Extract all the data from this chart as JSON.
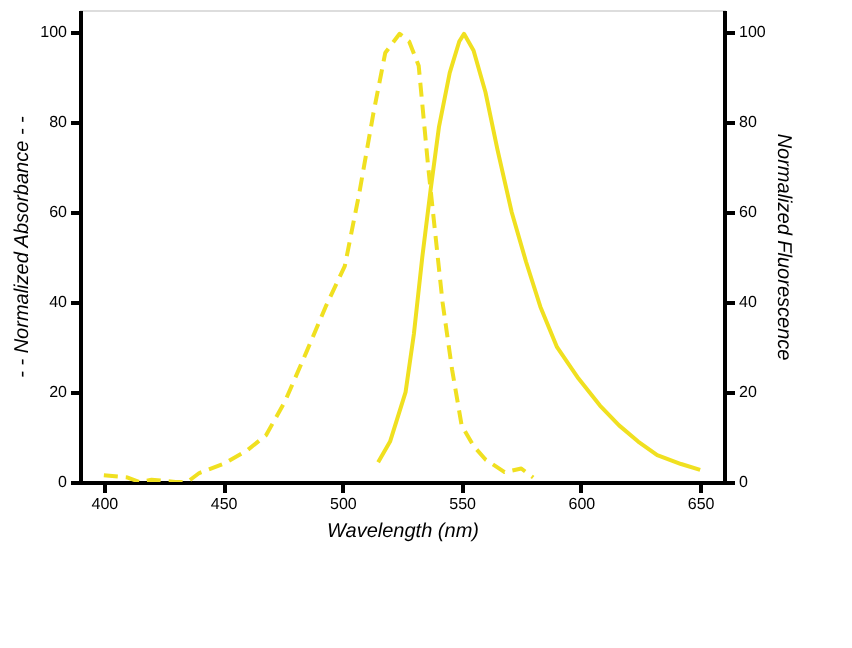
{
  "chart_data": {
    "type": "line",
    "xlabel": "Wavelength (nm)",
    "ylabel": "- - Normalized  Absorbance -  -",
    "y2label": "Normalized Fluorescence",
    "xlim": [
      390,
      660
    ],
    "xticks": [
      400,
      450,
      500,
      550,
      600,
      650
    ],
    "ylim": [
      0,
      105
    ],
    "yticks": [
      0,
      20,
      40,
      60,
      80,
      100
    ],
    "y2lim": [
      0,
      105
    ],
    "y2ticks": [
      0,
      20,
      40,
      60,
      80,
      100
    ],
    "grid": false,
    "marker": "none",
    "series": [
      {
        "color": "#f0e020",
        "line_style": "dashed",
        "x": [
          400,
          410,
          415,
          420,
          430,
          435,
          440,
          450,
          460,
          468,
          476,
          485,
          493,
          501,
          507,
          513,
          518,
          524,
          528,
          532,
          536,
          542,
          546,
          550,
          555,
          560,
          568,
          575,
          580
        ],
        "values": [
          1.5,
          1,
          0,
          0.5,
          0,
          0,
          2,
          4,
          7,
          10.4,
          18,
          29,
          39,
          48,
          64,
          82,
          95.5,
          99.7,
          98,
          92.6,
          70,
          40,
          25,
          12.6,
          8,
          5,
          2.2,
          3,
          1
        ]
      },
      {
        "color": "#f0e020",
        "line_style": "solid",
        "axis": "y2",
        "x": [
          515,
          520,
          526.5,
          530,
          533.5,
          537,
          540.5,
          545,
          549,
          551,
          555,
          560,
          565,
          571,
          577,
          583,
          590,
          599,
          608,
          616,
          624,
          632,
          642,
          650
        ],
        "values": [
          4.4,
          9,
          20,
          33,
          50,
          65,
          79,
          91,
          98,
          99.7,
          96,
          86.7,
          74,
          60,
          49,
          39,
          30,
          23,
          17,
          12.6,
          9,
          6,
          4,
          2.7
        ]
      }
    ]
  }
}
